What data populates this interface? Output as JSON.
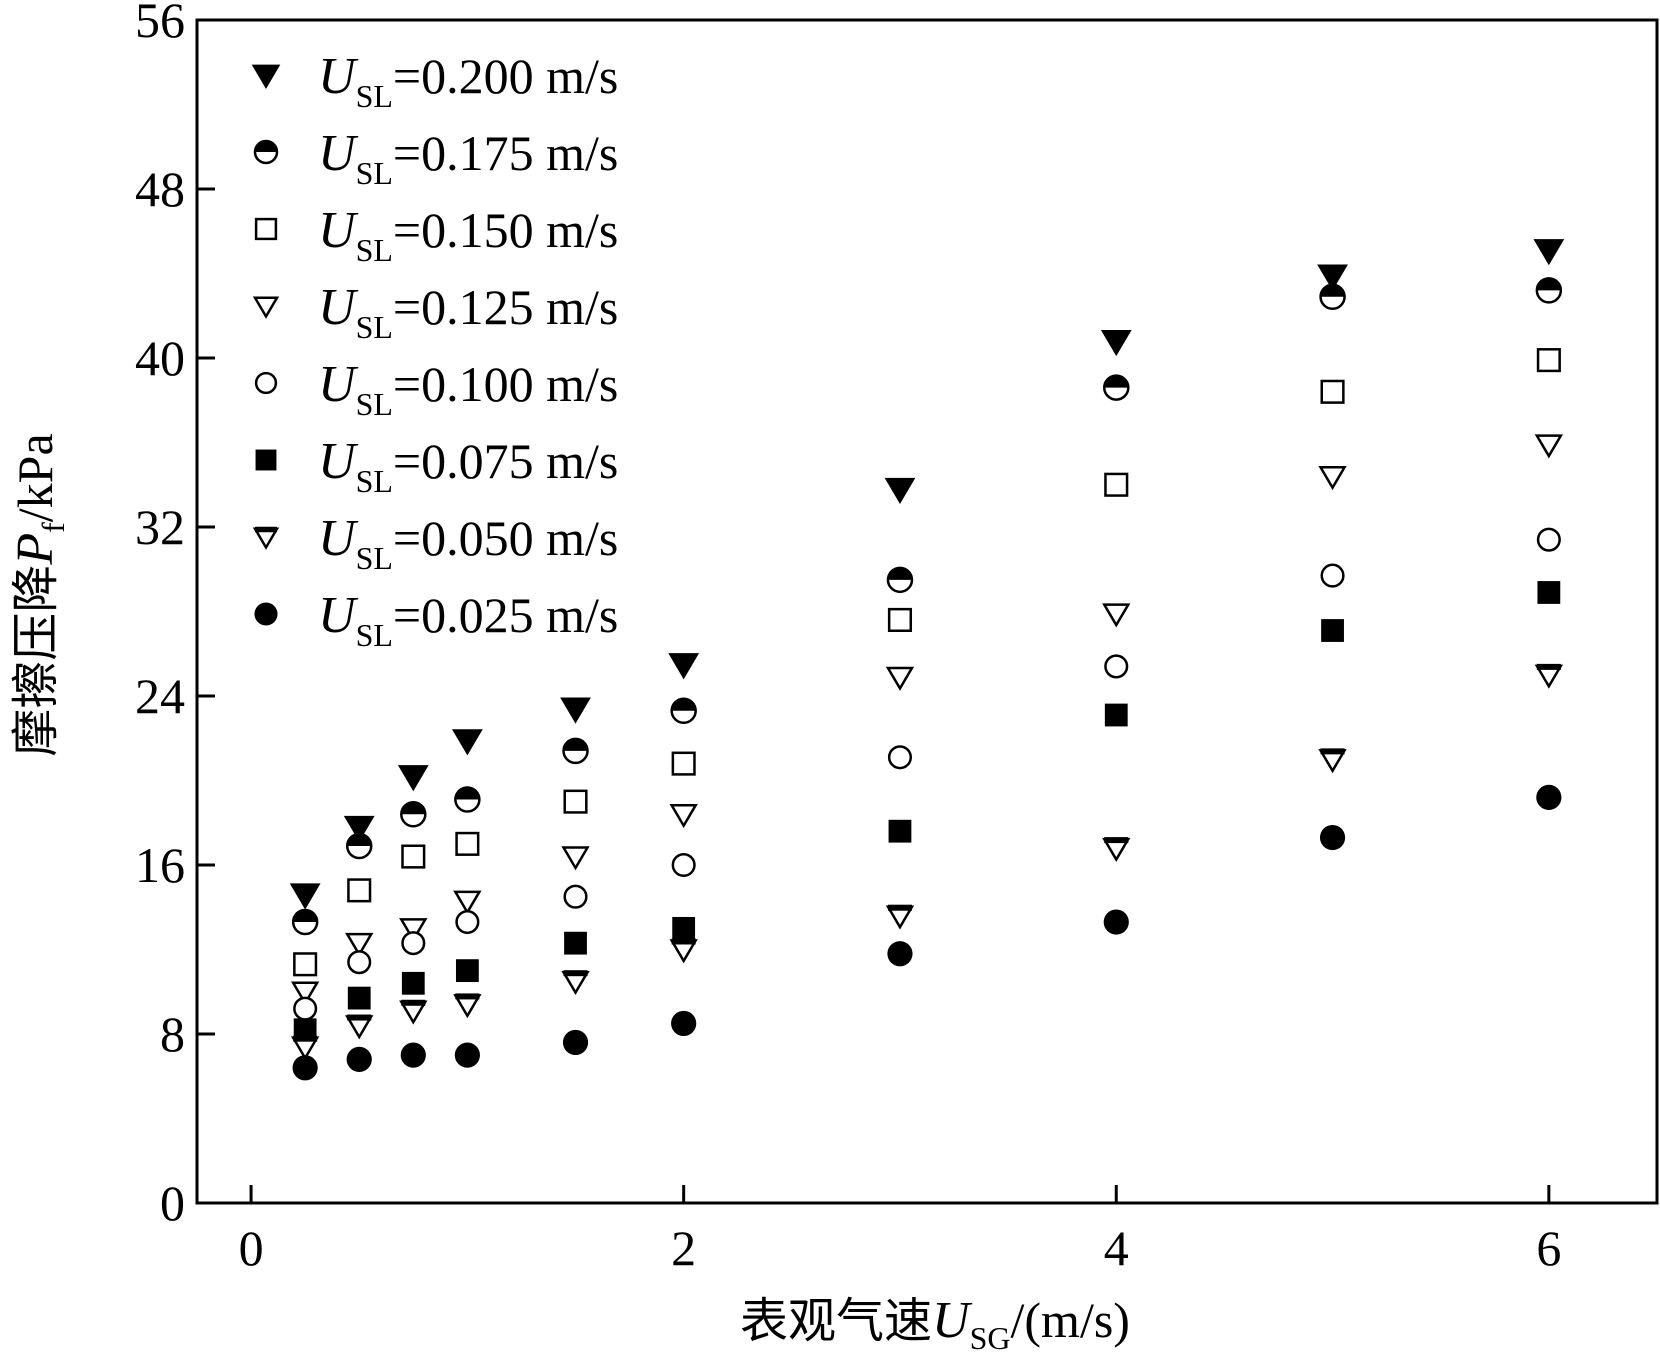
{
  "chart_data": {
    "type": "scatter",
    "xlabel": "表观气速",
    "xlabel_symbol": "U",
    "xlabel_subscript": "SG",
    "xlabel_unit": "/(m/s)",
    "ylabel": "摩擦压降",
    "ylabel_symbol": "P",
    "ylabel_subscript": "f",
    "ylabel_unit": "/kPa",
    "xlim": [
      -0.25,
      6.5
    ],
    "ylim": [
      0,
      56
    ],
    "xticks": [
      0,
      2,
      4,
      6
    ],
    "yticks": [
      0,
      8,
      16,
      24,
      32,
      40,
      48,
      56
    ],
    "grid": false,
    "legend_position": "top-left",
    "x": [
      0.25,
      0.5,
      0.75,
      1.0,
      1.5,
      2.0,
      3.0,
      4.0,
      5.0,
      6.0
    ],
    "series": [
      {
        "name": "=0.200 m/s",
        "symbol": "U",
        "subscript": "SL",
        "marker": "triangle-down-filled",
        "values": [
          14.6,
          17.8,
          20.2,
          21.9,
          23.4,
          25.5,
          33.8,
          40.8,
          43.9,
          45.1
        ]
      },
      {
        "name": "=0.175 m/s",
        "symbol": "U",
        "subscript": "SL",
        "marker": "circle-half",
        "values": [
          13.3,
          16.9,
          18.4,
          19.1,
          21.4,
          23.3,
          29.5,
          38.6,
          42.9,
          43.2
        ]
      },
      {
        "name": "=0.150 m/s",
        "symbol": "U",
        "subscript": "SL",
        "marker": "square-open",
        "values": [
          11.3,
          14.8,
          16.4,
          17.0,
          19.0,
          20.8,
          27.6,
          34.0,
          38.4,
          39.9
        ]
      },
      {
        "name": "=0.125 m/s",
        "symbol": "U",
        "subscript": "SL",
        "marker": "triangle-down-open",
        "values": [
          10.0,
          12.3,
          13.0,
          14.3,
          16.4,
          18.4,
          24.9,
          27.9,
          34.4,
          35.9
        ]
      },
      {
        "name": "=0.100 m/s",
        "symbol": "U",
        "subscript": "SL",
        "marker": "circle-open",
        "values": [
          9.2,
          11.4,
          12.3,
          13.3,
          14.5,
          16.0,
          21.1,
          25.4,
          29.7,
          31.4
        ]
      },
      {
        "name": "=0.075 m/s",
        "symbol": "U",
        "subscript": "SL",
        "marker": "square-filled",
        "values": [
          8.2,
          9.7,
          10.4,
          11.0,
          12.3,
          13.0,
          17.6,
          23.1,
          27.1,
          28.9
        ]
      },
      {
        "name": "=0.050 m/s",
        "symbol": "U",
        "subscript": "SL",
        "marker": "triangle-down-bar",
        "values": [
          7.4,
          8.4,
          9.1,
          9.4,
          10.5,
          12.0,
          13.6,
          16.8,
          21.0,
          25.0
        ]
      },
      {
        "name": "=0.025 m/s",
        "symbol": "U",
        "subscript": "SL",
        "marker": "circle-filled",
        "values": [
          6.4,
          6.8,
          7.0,
          7.0,
          7.6,
          8.5,
          11.8,
          13.3,
          17.3,
          19.2
        ]
      }
    ]
  }
}
